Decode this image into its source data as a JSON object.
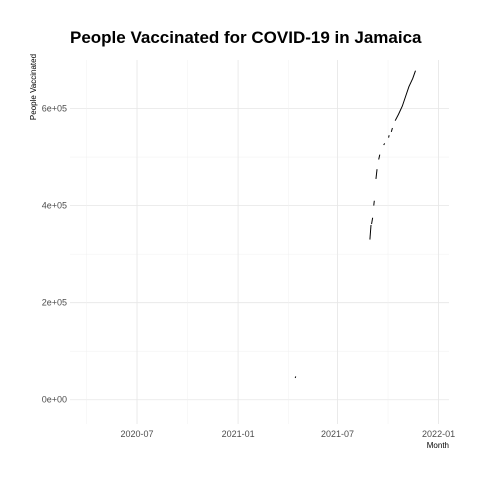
{
  "chart_data": {
    "type": "line",
    "title": "People Vaccinated for COVID-19 in Jamaica",
    "xlabel": "Month",
    "ylabel": "People Vaccinated",
    "x_ticks": [
      "2020-07",
      "2021-01",
      "2021-07",
      "2022-01"
    ],
    "y_ticks": [
      {
        "value": 0,
        "label": "0e+00"
      },
      {
        "value": 200000,
        "label": "2e+05"
      },
      {
        "value": 400000,
        "label": "4e+05"
      },
      {
        "value": 600000,
        "label": "6e+05"
      }
    ],
    "xlim": [
      "2020-03-01",
      "2022-01-20"
    ],
    "ylim": [
      -50000,
      700000
    ],
    "grid": true,
    "segments": [
      {
        "x": [
          "2021-04-15",
          "2021-04-16"
        ],
        "y": [
          45000,
          48000
        ]
      },
      {
        "x": [
          "2021-08-29",
          "2021-08-31"
        ],
        "y": [
          330000,
          360000
        ]
      },
      {
        "x": [
          "2021-09-01",
          "2021-09-03"
        ],
        "y": [
          362000,
          375000
        ]
      },
      {
        "x": [
          "2021-09-05",
          "2021-09-06"
        ],
        "y": [
          400000,
          410000
        ]
      },
      {
        "x": [
          "2021-09-09",
          "2021-09-11"
        ],
        "y": [
          455000,
          475000
        ]
      },
      {
        "x": [
          "2021-09-14",
          "2021-09-16"
        ],
        "y": [
          495000,
          505000
        ]
      },
      {
        "x": [
          "2021-09-23",
          "2021-09-25"
        ],
        "y": [
          525000,
          528000
        ]
      },
      {
        "x": [
          "2021-10-02",
          "2021-10-03"
        ],
        "y": [
          540000,
          545000
        ]
      },
      {
        "x": [
          "2021-10-07",
          "2021-10-09"
        ],
        "y": [
          552000,
          560000
        ]
      },
      {
        "x": [
          "2021-10-14",
          "2021-10-20",
          "2021-10-27",
          "2021-11-02",
          "2021-11-08",
          "2021-11-15",
          "2021-11-20"
        ],
        "y": [
          575000,
          588000,
          605000,
          625000,
          645000,
          662000,
          678000
        ]
      }
    ]
  }
}
